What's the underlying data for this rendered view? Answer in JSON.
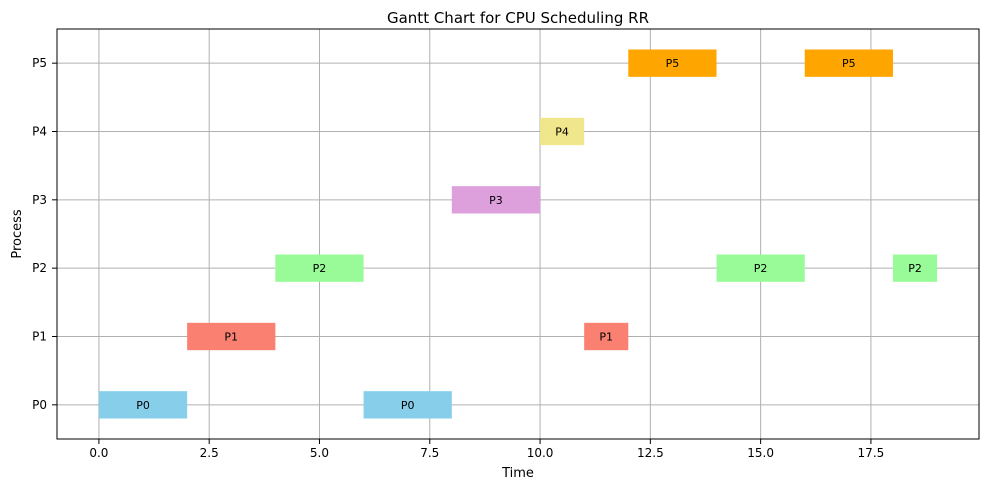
{
  "chart_data": {
    "type": "gantt",
    "title": "Gantt Chart for CPU Scheduling RR",
    "xlabel": "Time",
    "ylabel": "Process",
    "xlim": [
      -0.95,
      19.95
    ],
    "x_ticks": [
      0.0,
      2.5,
      5.0,
      7.5,
      10.0,
      12.5,
      15.0,
      17.5
    ],
    "x_tick_labels": [
      "0.0",
      "2.5",
      "5.0",
      "7.5",
      "10.0",
      "12.5",
      "15.0",
      "17.5"
    ],
    "categories": [
      "P0",
      "P1",
      "P2",
      "P3",
      "P4",
      "P5"
    ],
    "grid": true,
    "colors": {
      "P0": "#87ceeb",
      "P1": "#fa8072",
      "P2": "#98fb98",
      "P3": "#dda0dd",
      "P4": "#f0e68c",
      "P5": "#ffa500"
    },
    "bars": [
      {
        "process": "P0",
        "start": 0,
        "end": 2,
        "label": "P0"
      },
      {
        "process": "P1",
        "start": 2,
        "end": 4,
        "label": "P1"
      },
      {
        "process": "P2",
        "start": 4,
        "end": 6,
        "label": "P2"
      },
      {
        "process": "P0",
        "start": 6,
        "end": 8,
        "label": "P0"
      },
      {
        "process": "P3",
        "start": 8,
        "end": 10,
        "label": "P3"
      },
      {
        "process": "P4",
        "start": 10,
        "end": 11,
        "label": "P4"
      },
      {
        "process": "P1",
        "start": 11,
        "end": 12,
        "label": "P1"
      },
      {
        "process": "P5",
        "start": 12,
        "end": 14,
        "label": "P5"
      },
      {
        "process": "P2",
        "start": 14,
        "end": 16,
        "label": "P2"
      },
      {
        "process": "P5",
        "start": 16,
        "end": 18,
        "label": "P5"
      },
      {
        "process": "P2",
        "start": 18,
        "end": 19,
        "label": "P2"
      }
    ]
  }
}
